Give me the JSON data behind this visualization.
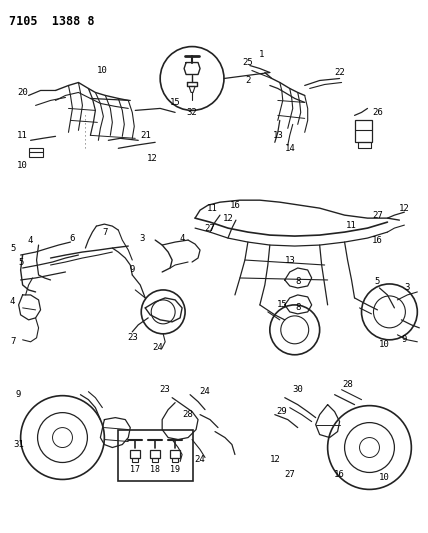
{
  "title": "7105  1388 8",
  "bg": "#ffffff",
  "lc": "#222222",
  "tc": "#000000",
  "fw": 4.28,
  "fh": 5.33,
  "dpi": 100
}
